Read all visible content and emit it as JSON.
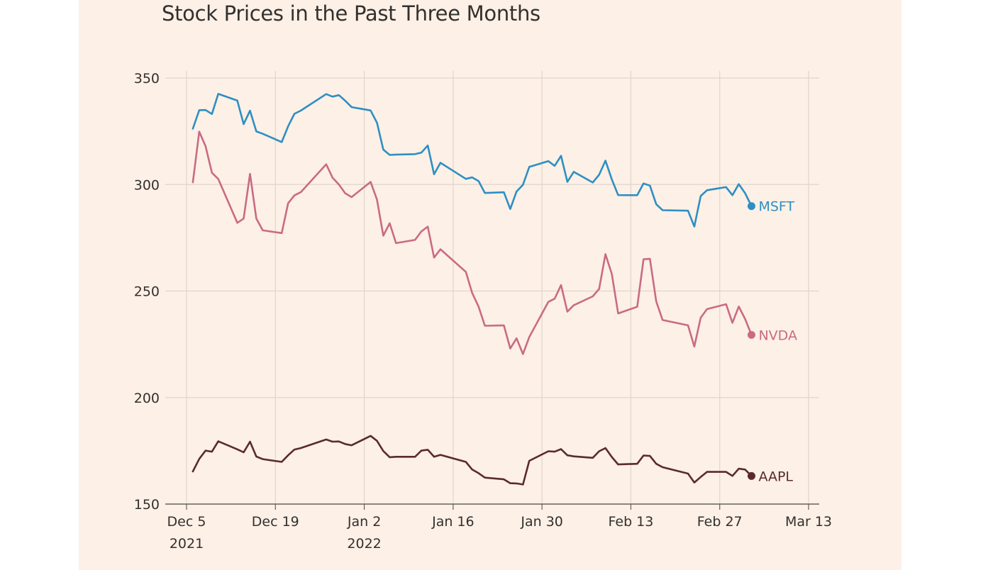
{
  "chart_data": {
    "type": "line",
    "title": "Stock Prices in the Past Three Months",
    "xlabel": "",
    "ylabel": "",
    "ylim": [
      150,
      350
    ],
    "xlim": [
      "2021-12-04",
      "2022-03-13"
    ],
    "grid": true,
    "yticks": [
      150,
      200,
      250,
      300,
      350
    ],
    "xticks": [
      {
        "date": "2021-12-05",
        "label": "Dec 5",
        "sublabel": "2021"
      },
      {
        "date": "2021-12-19",
        "label": "Dec 19",
        "sublabel": ""
      },
      {
        "date": "2022-01-02",
        "label": "Jan 2",
        "sublabel": "2022"
      },
      {
        "date": "2022-01-16",
        "label": "Jan 16",
        "sublabel": ""
      },
      {
        "date": "2022-01-30",
        "label": "Jan 30",
        "sublabel": ""
      },
      {
        "date": "2022-02-13",
        "label": "Feb 13",
        "sublabel": ""
      },
      {
        "date": "2022-02-27",
        "label": "Feb 27",
        "sublabel": ""
      },
      {
        "date": "2022-03-13",
        "label": "Mar 13",
        "sublabel": ""
      }
    ],
    "dates": [
      "2021-12-06",
      "2021-12-07",
      "2021-12-08",
      "2021-12-09",
      "2021-12-10",
      "2021-12-13",
      "2021-12-14",
      "2021-12-15",
      "2021-12-16",
      "2021-12-17",
      "2021-12-20",
      "2021-12-21",
      "2021-12-22",
      "2021-12-23",
      "2021-12-27",
      "2021-12-28",
      "2021-12-29",
      "2021-12-30",
      "2021-12-31",
      "2022-01-03",
      "2022-01-04",
      "2022-01-05",
      "2022-01-06",
      "2022-01-07",
      "2022-01-10",
      "2022-01-11",
      "2022-01-12",
      "2022-01-13",
      "2022-01-14",
      "2022-01-18",
      "2022-01-19",
      "2022-01-20",
      "2022-01-21",
      "2022-01-24",
      "2022-01-25",
      "2022-01-26",
      "2022-01-27",
      "2022-01-28",
      "2022-01-31",
      "2022-02-01",
      "2022-02-02",
      "2022-02-03",
      "2022-02-04",
      "2022-02-07",
      "2022-02-08",
      "2022-02-09",
      "2022-02-10",
      "2022-02-11",
      "2022-02-14",
      "2022-02-15",
      "2022-02-16",
      "2022-02-17",
      "2022-02-18",
      "2022-02-22",
      "2022-02-23",
      "2022-02-24",
      "2022-02-25",
      "2022-02-28",
      "2022-03-01",
      "2022-03-02",
      "2022-03-03",
      "2022-03-04"
    ],
    "series": [
      {
        "name": "MSFT",
        "color": "#2e8fc3",
        "values": [
          326.2,
          334.9,
          334.97,
          333.1,
          342.54,
          339.4,
          328.34,
          334.65,
          324.9,
          323.8,
          319.91,
          327.29,
          333.2,
          334.69,
          342.45,
          341.25,
          341.95,
          339.32,
          336.32,
          334.75,
          329.01,
          316.38,
          313.88,
          314.04,
          314.27,
          314.98,
          318.27,
          304.8,
          310.2,
          302.65,
          303.33,
          301.6,
          296.03,
          296.37,
          288.49,
          296.71,
          299.84,
          308.26,
          310.98,
          308.76,
          313.46,
          301.25,
          305.94,
          300.95,
          304.56,
          311.21,
          302.38,
          295.04,
          295.0,
          300.47,
          299.5,
          290.73,
          287.93,
          287.72,
          280.27,
          294.59,
          297.31,
          298.79,
          295.0,
          300.19,
          295.92,
          289.86
        ]
      },
      {
        "name": "NVDA",
        "color": "#c96b84",
        "values": [
          301.0,
          324.8,
          318.0,
          305.5,
          302.6,
          282.0,
          284.0,
          305.0,
          284.0,
          278.5,
          277.2,
          291.2,
          294.9,
          296.4,
          309.5,
          303.2,
          300.0,
          295.9,
          294.1,
          301.2,
          292.9,
          276.0,
          281.8,
          272.5,
          274.0,
          278.0,
          280.2,
          265.7,
          269.6,
          259.0,
          249.1,
          242.7,
          233.7,
          233.9,
          223.0,
          227.8,
          220.4,
          228.4,
          244.9,
          246.4,
          252.8,
          240.3,
          243.3,
          247.5,
          251.0,
          267.3,
          258.0,
          239.5,
          242.6,
          264.9,
          265.1,
          245.1,
          236.4,
          233.9,
          223.9,
          237.5,
          241.5,
          243.8,
          235.1,
          242.7,
          236.9,
          229.4
        ]
      },
      {
        "name": "AAPL",
        "color": "#5a2a2e",
        "values": [
          165.3,
          171.2,
          175.1,
          174.6,
          179.5,
          175.7,
          174.3,
          179.3,
          172.3,
          171.1,
          169.8,
          172.9,
          175.6,
          176.3,
          180.3,
          179.3,
          179.4,
          178.2,
          177.6,
          182.0,
          179.7,
          174.9,
          172.0,
          172.2,
          172.2,
          175.1,
          175.5,
          172.2,
          173.1,
          169.8,
          166.2,
          164.5,
          162.4,
          161.6,
          159.8,
          159.7,
          159.2,
          170.3,
          174.8,
          174.6,
          175.8,
          172.9,
          172.4,
          171.7,
          174.8,
          176.3,
          172.1,
          168.6,
          168.9,
          172.8,
          172.6,
          168.9,
          167.3,
          164.3,
          160.1,
          162.7,
          165.1,
          165.1,
          163.2,
          166.6,
          166.2,
          163.2
        ]
      }
    ]
  }
}
